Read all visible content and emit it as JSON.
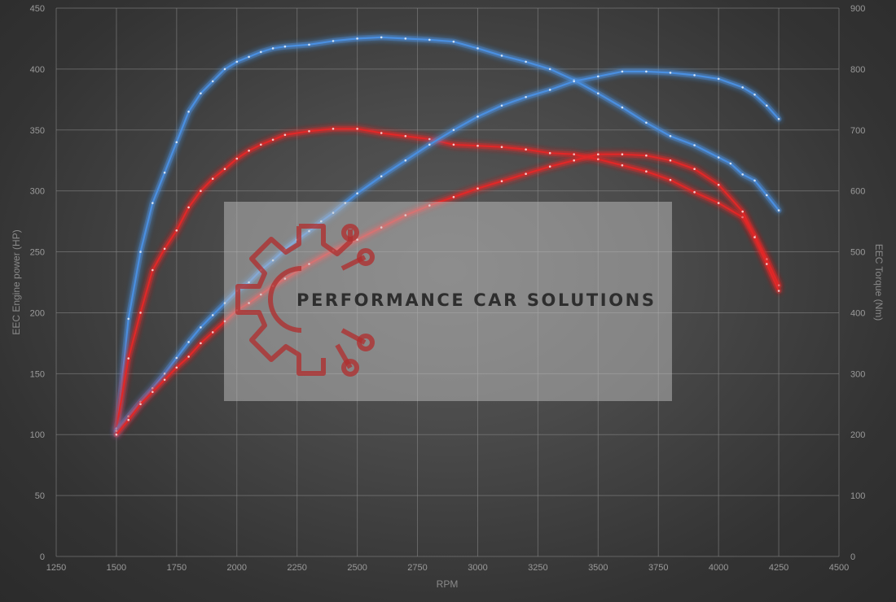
{
  "chart_data": {
    "type": "line",
    "x_label": "RPM",
    "y_left_label": "EEC Engine power (HP)",
    "y_right_label": "EEC Torque (Nm)",
    "x_range": [
      1250,
      4500
    ],
    "x_ticks": [
      1250,
      1500,
      1750,
      2000,
      2250,
      2500,
      2750,
      3000,
      3250,
      3500,
      3750,
      4000,
      4250,
      4500
    ],
    "y_left_range": [
      0,
      450
    ],
    "y_left_ticks": [
      0,
      50,
      100,
      150,
      200,
      250,
      300,
      350,
      400,
      450
    ],
    "y_right_range": [
      0,
      900
    ],
    "y_right_ticks": [
      0,
      100,
      200,
      300,
      400,
      500,
      600,
      700,
      800,
      900
    ],
    "grid": true,
    "series": [
      {
        "color": "#4a8fe0",
        "axis": "right",
        "points": [
          [
            1500,
            200
          ],
          [
            1550,
            390
          ],
          [
            1600,
            500
          ],
          [
            1650,
            580
          ],
          [
            1700,
            630
          ],
          [
            1750,
            680
          ],
          [
            1800,
            730
          ],
          [
            1850,
            760
          ],
          [
            1900,
            780
          ],
          [
            1950,
            800
          ],
          [
            2000,
            812
          ],
          [
            2050,
            820
          ],
          [
            2100,
            828
          ],
          [
            2150,
            834
          ],
          [
            2200,
            837
          ],
          [
            2300,
            840
          ],
          [
            2400,
            846
          ],
          [
            2500,
            850
          ],
          [
            2600,
            852
          ],
          [
            2700,
            850
          ],
          [
            2800,
            848
          ],
          [
            2900,
            845
          ],
          [
            3000,
            834
          ],
          [
            3100,
            822
          ],
          [
            3200,
            812
          ],
          [
            3300,
            800
          ],
          [
            3400,
            782
          ],
          [
            3500,
            760
          ],
          [
            3600,
            737
          ],
          [
            3700,
            712
          ],
          [
            3800,
            690
          ],
          [
            3900,
            675
          ],
          [
            4000,
            655
          ],
          [
            4050,
            645
          ],
          [
            4100,
            627
          ],
          [
            4150,
            617
          ],
          [
            4200,
            593
          ],
          [
            4250,
            568
          ]
        ]
      },
      {
        "color": "#e02828",
        "axis": "right",
        "points": [
          [
            1500,
            210
          ],
          [
            1550,
            325
          ],
          [
            1600,
            400
          ],
          [
            1650,
            470
          ],
          [
            1700,
            505
          ],
          [
            1750,
            535
          ],
          [
            1800,
            573
          ],
          [
            1850,
            600
          ],
          [
            1900,
            620
          ],
          [
            1950,
            636
          ],
          [
            2000,
            653
          ],
          [
            2050,
            666
          ],
          [
            2100,
            676
          ],
          [
            2150,
            684
          ],
          [
            2200,
            692
          ],
          [
            2300,
            698
          ],
          [
            2400,
            702
          ],
          [
            2500,
            702
          ],
          [
            2600,
            695
          ],
          [
            2700,
            690
          ],
          [
            2800,
            685
          ],
          [
            2900,
            676
          ],
          [
            3000,
            674
          ],
          [
            3100,
            672
          ],
          [
            3200,
            668
          ],
          [
            3300,
            662
          ],
          [
            3400,
            660
          ],
          [
            3500,
            652
          ],
          [
            3600,
            642
          ],
          [
            3700,
            632
          ],
          [
            3800,
            618
          ],
          [
            3900,
            598
          ],
          [
            4000,
            580
          ],
          [
            4100,
            557
          ],
          [
            4150,
            526
          ],
          [
            4200,
            488
          ],
          [
            4250,
            445
          ]
        ]
      },
      {
        "color": "#4a8fe0",
        "axis": "left",
        "points": [
          [
            1500,
            103
          ],
          [
            1550,
            115
          ],
          [
            1600,
            127
          ],
          [
            1650,
            138
          ],
          [
            1700,
            150
          ],
          [
            1750,
            163
          ],
          [
            1800,
            176
          ],
          [
            1850,
            188
          ],
          [
            1900,
            198
          ],
          [
            1950,
            208
          ],
          [
            2000,
            218
          ],
          [
            2050,
            225
          ],
          [
            2100,
            235
          ],
          [
            2150,
            243
          ],
          [
            2200,
            252
          ],
          [
            2250,
            260
          ],
          [
            2300,
            267
          ],
          [
            2350,
            275
          ],
          [
            2400,
            282
          ],
          [
            2450,
            290
          ],
          [
            2500,
            298
          ],
          [
            2600,
            312
          ],
          [
            2700,
            325
          ],
          [
            2800,
            338
          ],
          [
            2900,
            350
          ],
          [
            3000,
            361
          ],
          [
            3100,
            370
          ],
          [
            3200,
            377
          ],
          [
            3300,
            383
          ],
          [
            3400,
            390
          ],
          [
            3500,
            394
          ],
          [
            3600,
            398
          ],
          [
            3700,
            398
          ],
          [
            3800,
            397
          ],
          [
            3900,
            395
          ],
          [
            4000,
            392
          ],
          [
            4100,
            385
          ],
          [
            4150,
            379
          ],
          [
            4200,
            370
          ],
          [
            4250,
            359
          ]
        ]
      },
      {
        "color": "#e02828",
        "axis": "left",
        "points": [
          [
            1500,
            100
          ],
          [
            1550,
            112
          ],
          [
            1600,
            125
          ],
          [
            1650,
            135
          ],
          [
            1700,
            145
          ],
          [
            1750,
            155
          ],
          [
            1800,
            164
          ],
          [
            1850,
            175
          ],
          [
            1900,
            184
          ],
          [
            1950,
            193
          ],
          [
            2000,
            202
          ],
          [
            2050,
            208
          ],
          [
            2100,
            215
          ],
          [
            2150,
            222
          ],
          [
            2200,
            228
          ],
          [
            2300,
            240
          ],
          [
            2400,
            251
          ],
          [
            2500,
            260
          ],
          [
            2600,
            270
          ],
          [
            2700,
            280
          ],
          [
            2800,
            288
          ],
          [
            2900,
            295
          ],
          [
            3000,
            302
          ],
          [
            3100,
            308
          ],
          [
            3200,
            314
          ],
          [
            3300,
            320
          ],
          [
            3400,
            325
          ],
          [
            3500,
            330
          ],
          [
            3600,
            330
          ],
          [
            3700,
            329
          ],
          [
            3800,
            325
          ],
          [
            3900,
            318
          ],
          [
            4000,
            305
          ],
          [
            4100,
            283
          ],
          [
            4150,
            262
          ],
          [
            4200,
            240
          ],
          [
            4250,
            218
          ]
        ]
      }
    ]
  },
  "watermark": {
    "text": "PERFORMANCE CAR SOLUTIONS",
    "logo_color": "#b03030"
  }
}
